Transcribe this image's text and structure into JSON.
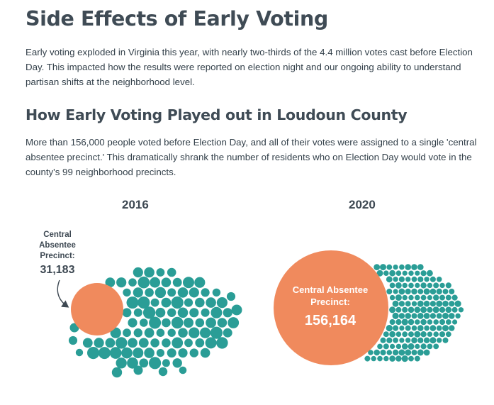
{
  "title": "Side Effects of Early Voting",
  "intro": "Early voting exploded in Virginia this year, with nearly two-thirds of the 4.4 million votes cast before Election Day. This impacted how the results were reported on election night and our ongoing ability to understand partisan shifts at the neighborhood level.",
  "subtitle": "How Early Voting Played out in Loudoun County",
  "description": "More than 156,000 people voted before Election Day, and all of their votes were assigned to a single 'central absentee precinct.' This dramatically shrank the number of residents who on Election Day would vote in the county's 99 neighborhood precincts.",
  "colors": {
    "precinct": "#2a9d96",
    "central": "#f08a5d",
    "text": "#3d4852"
  },
  "panels": [
    {
      "year": "2016",
      "central_label_lines": [
        "Central",
        "Absentee",
        "Precinct:"
      ],
      "central_value": "31,183",
      "central_votes": 31183
    },
    {
      "year": "2020",
      "central_label_lines": [
        "Central Absentee",
        "Precinct:"
      ],
      "central_value": "156,164",
      "central_votes": 156164
    }
  ],
  "neighborhood_precincts": 99
}
